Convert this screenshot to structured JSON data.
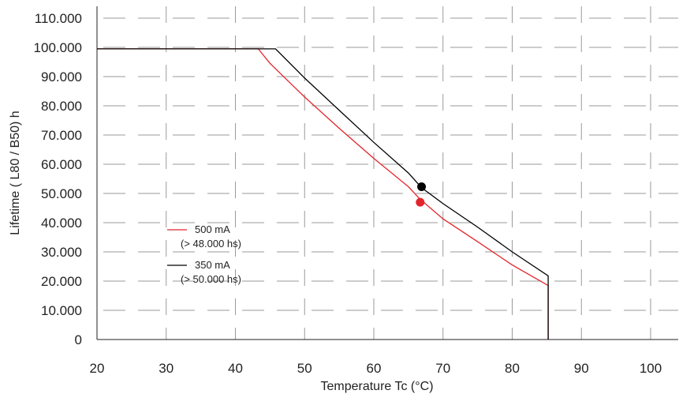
{
  "chart_data": {
    "type": "line",
    "title": "",
    "xlabel": "Temperature Tc (°C)",
    "ylabel": "Lifetime ( L80 / B50) h",
    "xlim": [
      20,
      100
    ],
    "ylim": [
      0,
      110000
    ],
    "x_ticks": [
      20,
      30,
      40,
      50,
      60,
      70,
      80,
      90,
      100
    ],
    "x_tick_labels": [
      "20",
      "30",
      "40",
      "50",
      "60",
      "70",
      "80",
      "90",
      "100"
    ],
    "y_ticks": [
      0,
      10000,
      20000,
      30000,
      40000,
      50000,
      60000,
      70000,
      80000,
      90000,
      100000,
      110000
    ],
    "y_tick_labels": [
      "0",
      "10.000",
      "20.000",
      "30.000",
      "40.000",
      "50.000",
      "60.000",
      "70.000",
      "80.000",
      "90.000",
      "100.000",
      "110.000"
    ],
    "grid": true,
    "grid_style": "dashed",
    "legend_position": "lower-left",
    "series": [
      {
        "name": "500 mA",
        "note": "(> 48.000 hs)",
        "color": "#e3242b",
        "points": [
          [
            20,
            99500
          ],
          [
            43.3,
            99500
          ],
          [
            45,
            94500
          ],
          [
            50,
            83000
          ],
          [
            55,
            72300
          ],
          [
            60,
            62000
          ],
          [
            65,
            52300
          ],
          [
            66.7,
            48000
          ],
          [
            70,
            41300
          ],
          [
            75,
            33500
          ],
          [
            80,
            25500
          ],
          [
            85.2,
            18500
          ],
          [
            85.2,
            0
          ]
        ],
        "marker": [
          66.7,
          47000
        ]
      },
      {
        "name": "350 mA",
        "note": "(> 50.000 hs)",
        "color": "#000000",
        "points": [
          [
            20,
            99500
          ],
          [
            45.8,
            99500
          ],
          [
            50,
            89500
          ],
          [
            55,
            78500
          ],
          [
            60,
            67500
          ],
          [
            65,
            57000
          ],
          [
            66.9,
            52000
          ],
          [
            70,
            46500
          ],
          [
            75,
            38500
          ],
          [
            80,
            30000
          ],
          [
            85.2,
            21800
          ],
          [
            85.2,
            0
          ]
        ],
        "marker": [
          66.9,
          52300
        ]
      }
    ]
  }
}
